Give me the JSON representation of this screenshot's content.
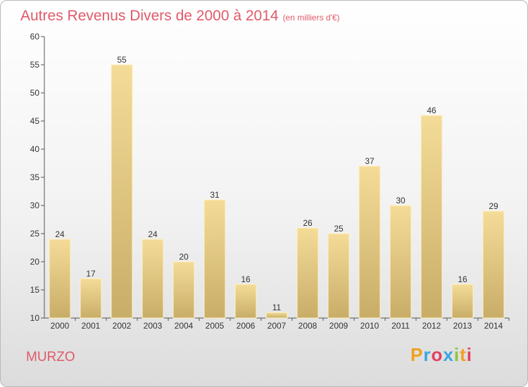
{
  "header": {
    "title": "Autres Revenus Divers de 2000 à 2014",
    "subtitle": "(en milliers d'€)"
  },
  "footer": {
    "location": "MURZO",
    "brand": "Proxiti"
  },
  "colors": {
    "title": "#e05a6a",
    "bar_top": "#f4dc98",
    "bar_bottom": "#c8ad68",
    "bar_border": "#fff2c8",
    "logo": [
      "#f0a020",
      "#38a8e0",
      "#e04060",
      "#38a8e0",
      "#8cc63e",
      "#f0a020",
      "#e04060"
    ]
  },
  "chart_data": {
    "type": "bar",
    "title": "Autres Revenus Divers de 2000 à 2014",
    "subtitle": "(en milliers d'€)",
    "xlabel": "",
    "ylabel": "",
    "categories": [
      "2000",
      "2001",
      "2002",
      "2003",
      "2004",
      "2005",
      "2006",
      "2007",
      "2008",
      "2009",
      "2010",
      "2011",
      "2012",
      "2013",
      "2014"
    ],
    "values": [
      24,
      17,
      55,
      24,
      20,
      31,
      16,
      11,
      26,
      25,
      37,
      30,
      46,
      16,
      29
    ],
    "ylim": [
      10,
      60
    ],
    "yticks": [
      10,
      15,
      20,
      25,
      30,
      35,
      40,
      45,
      50,
      55,
      60
    ],
    "grid": false,
    "legend": "none"
  }
}
